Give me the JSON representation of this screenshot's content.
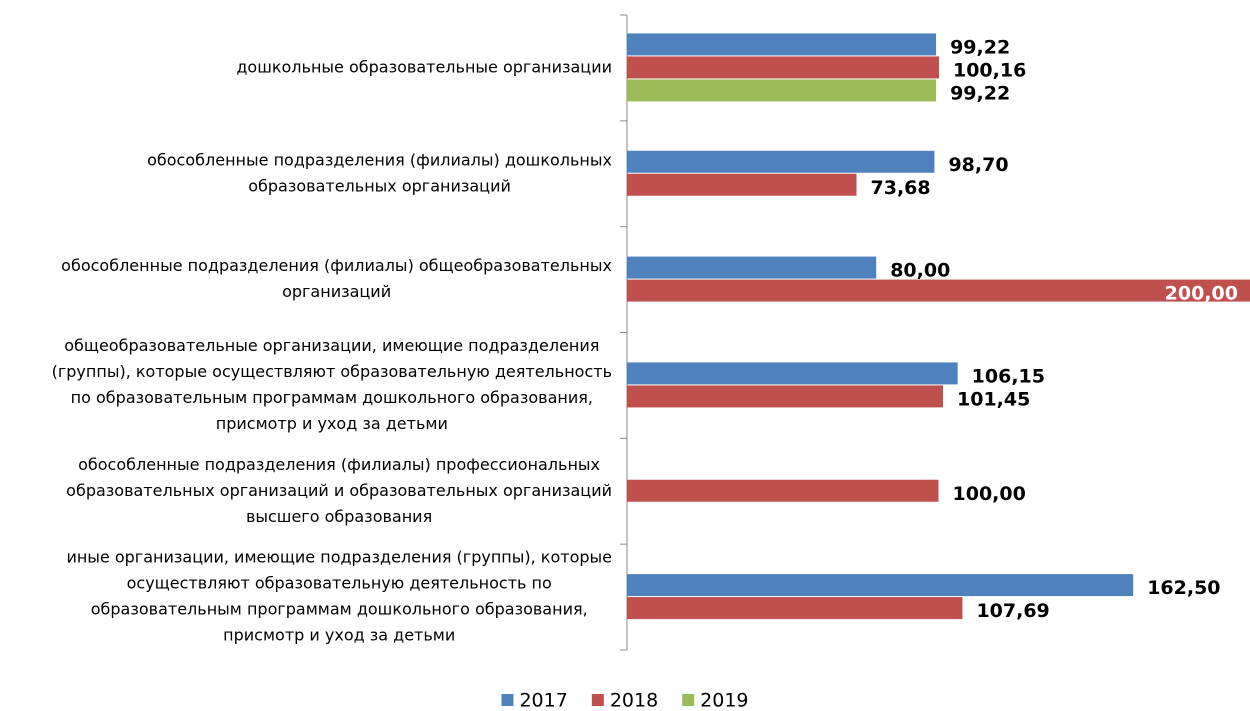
{
  "chart_data": {
    "type": "bar",
    "orientation": "horizontal",
    "categories": [
      [
        "дошкольные образовательные организации"
      ],
      [
        "обособленные подразделения (филиалы) дошкольных",
        "образовательных организаций"
      ],
      [
        "обособленные подразделения (филиалы) общеобразовательных",
        "организаций"
      ],
      [
        "общеобразовательные организации, имеющие подразделения",
        "(группы), которые осуществляют образовательную деятельность",
        "по образовательным программам дошкольного образования,",
        "присмотр и уход за детьми"
      ],
      [
        "обособленные подразделения (филиалы) профессиональных",
        "образовательных организаций и образовательных организаций",
        "высшего образования"
      ],
      [
        "иные организации, имеющие подразделения (группы), которые",
        "осуществляют образовательную деятельность по",
        "образовательным программам дошкольного образования,",
        "присмотр и уход за детьми"
      ]
    ],
    "series": [
      {
        "name": "2017",
        "color": "#4f81bd",
        "values": [
          99.22,
          98.7,
          80.0,
          106.15,
          null,
          162.5
        ],
        "value_labels": [
          "99,22",
          "98,70",
          "80,00",
          "106,15",
          null,
          "162,50"
        ]
      },
      {
        "name": "2018",
        "color": "#c0504d",
        "values": [
          100.16,
          73.68,
          200.0,
          101.45,
          100.0,
          107.69
        ],
        "value_labels": [
          "100,16",
          "73,68",
          "200,00",
          "101,45",
          "100,00",
          "107,69"
        ]
      },
      {
        "name": "2019",
        "color": "#9bbb59",
        "values": [
          99.22,
          null,
          null,
          null,
          null,
          null
        ],
        "value_labels": [
          "99,22",
          null,
          null,
          null,
          null,
          null
        ]
      }
    ],
    "xlim": [
      0,
      200
    ],
    "legend": "bottom"
  }
}
